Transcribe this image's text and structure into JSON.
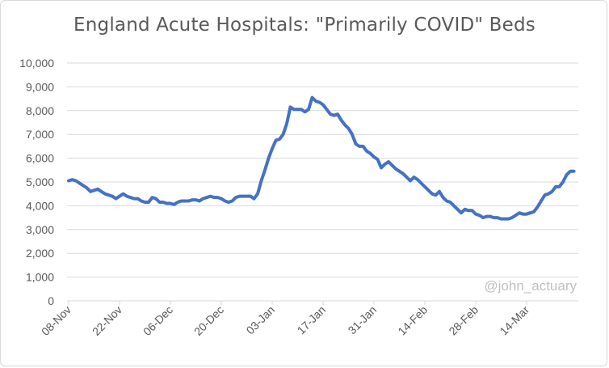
{
  "chart_data": {
    "type": "line",
    "title": "England Acute Hospitals: \"Primarily COVID\" Beds",
    "xlabel": "",
    "ylabel": "",
    "ylim": [
      0,
      10000
    ],
    "yticks": [
      0,
      1000,
      2000,
      3000,
      4000,
      5000,
      6000,
      7000,
      8000,
      9000,
      10000
    ],
    "ytick_labels": [
      "0",
      "1,000",
      "2,000",
      "3,000",
      "4,000",
      "5,000",
      "6,000",
      "7,000",
      "8,000",
      "9,000",
      "10,000"
    ],
    "grid": true,
    "legend": "none",
    "x_start": "08-Nov",
    "xtick_labels": [
      "08-Nov",
      "22-Nov",
      "06-Dec",
      "20-Dec",
      "03-Jan",
      "17-Jan",
      "31-Jan",
      "14-Feb",
      "28-Feb",
      "14-Mar"
    ],
    "series": [
      {
        "color": "#4472c4",
        "values": [
          5050,
          5100,
          5050,
          4950,
          4850,
          4750,
          4600,
          4650,
          4700,
          4600,
          4500,
          4450,
          4400,
          4300,
          4400,
          4500,
          4400,
          4350,
          4300,
          4300,
          4200,
          4150,
          4150,
          4350,
          4300,
          4150,
          4150,
          4100,
          4100,
          4050,
          4150,
          4200,
          4200,
          4200,
          4250,
          4250,
          4200,
          4300,
          4350,
          4400,
          4350,
          4350,
          4300,
          4200,
          4150,
          4200,
          4350,
          4400,
          4400,
          4400,
          4400,
          4300,
          4500,
          5050,
          5500,
          6000,
          6400,
          6750,
          6800,
          7000,
          7450,
          8150,
          8050,
          8050,
          8050,
          7950,
          8050,
          8550,
          8400,
          8350,
          8250,
          8050,
          7850,
          7800,
          7850,
          7600,
          7400,
          7250,
          7000,
          6600,
          6500,
          6500,
          6300,
          6200,
          6050,
          5950,
          5600,
          5750,
          5850,
          5700,
          5550,
          5450,
          5350,
          5200,
          5050,
          5200,
          5100,
          4950,
          4800,
          4650,
          4500,
          4450,
          4600,
          4350,
          4200,
          4150,
          4000,
          3850,
          3700,
          3850,
          3800,
          3800,
          3650,
          3600,
          3500,
          3550,
          3550,
          3500,
          3500,
          3450,
          3450,
          3450,
          3500,
          3600,
          3700,
          3650,
          3650,
          3700,
          3750,
          3950,
          4200,
          4450,
          4500,
          4600,
          4800,
          4800,
          5000,
          5300,
          5450,
          5450
        ]
      }
    ],
    "annotation": "@john_actuary"
  }
}
